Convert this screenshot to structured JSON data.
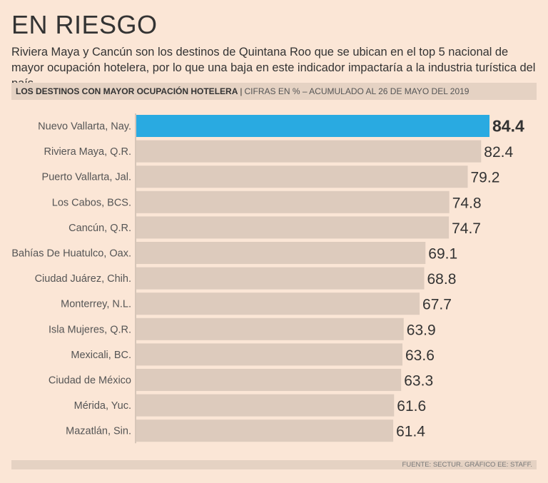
{
  "title": "EN RIESGO",
  "subtitle": "Riviera Maya y Cancún son los destinos de Quintana Roo que se ubican en el top 5 nacional de mayor ocupación hotelera, por lo que una baja en este indicador impactaría a la industria turística del país.",
  "header": {
    "bold": "LOS DESTINOS CON MAYOR OCUPACIÓN HOTELERA",
    "separator": "|",
    "light": "CIFRAS EN % – ACUMULADO AL 26 DE MAYO DEL 2019"
  },
  "footer": "FUENTE: SECTUR. GRÁFICO EE: STAFF.",
  "colors": {
    "highlight": "#29aae1",
    "bar": "#ddcbbd",
    "axis": "#bfb0a4"
  },
  "chart_data": {
    "type": "bar",
    "orientation": "horizontal",
    "title": "LOS DESTINOS CON MAYOR OCUPACIÓN HOTELERA",
    "ylabel": "",
    "xlabel": "CIFRAS EN %",
    "xlim": [
      0,
      84.4
    ],
    "highlight_index": 0,
    "categories": [
      "Nuevo Vallarta, Nay.",
      "Riviera Maya, Q.R.",
      "Puerto Vallarta, Jal.",
      "Los Cabos, BCS.",
      "Cancún, Q.R.",
      "Bahías De Huatulco, Oax.",
      "Ciudad Juárez, Chih.",
      "Monterrey, N.L.",
      "Isla Mujeres, Q.R.",
      "Mexicali, BC.",
      "Ciudad de México",
      "Mérida, Yuc.",
      "Mazatlán, Sin."
    ],
    "values": [
      84.4,
      82.4,
      79.2,
      74.8,
      74.7,
      69.1,
      68.8,
      67.7,
      63.9,
      63.6,
      63.3,
      61.6,
      61.4
    ],
    "value_labels": [
      "84.4",
      "82.4",
      "79.2",
      "74.8",
      "74.7",
      "69.1",
      "68.8",
      "67.7",
      "63.9",
      "63.6",
      "63.3",
      "61.6",
      "61.4"
    ]
  }
}
